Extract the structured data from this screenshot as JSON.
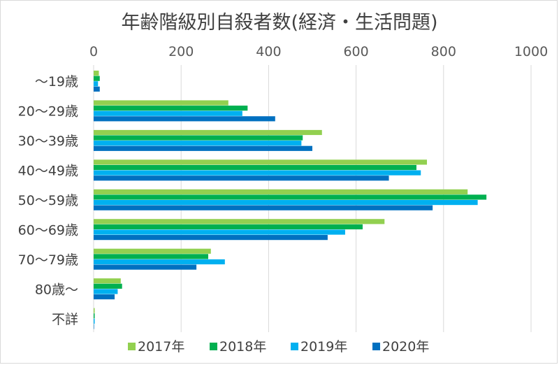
{
  "chart_data": {
    "type": "bar",
    "orientation": "horizontal",
    "title": "年齢階級別自殺者数(経済・生活問題)",
    "xlabel": "",
    "ylabel": "",
    "xlim": [
      0,
      1000
    ],
    "xticks": [
      0,
      200,
      400,
      600,
      800,
      1000
    ],
    "x_axis_position": "top",
    "grid": true,
    "legend_position": "bottom",
    "categories": [
      "～19歳",
      "20～29歳",
      "30～39歳",
      "40～49歳",
      "50～59歳",
      "60～69歳",
      "70～79歳",
      "80歳～",
      "不詳"
    ],
    "series": [
      {
        "name": "2017年",
        "color": "#92d050",
        "values": [
          12,
          308,
          522,
          762,
          855,
          665,
          268,
          62,
          0
        ]
      },
      {
        "name": "2018年",
        "color": "#00b050",
        "values": [
          14,
          352,
          478,
          738,
          898,
          615,
          262,
          65,
          0
        ]
      },
      {
        "name": "2019年",
        "color": "#00b0f0",
        "values": [
          10,
          340,
          475,
          748,
          878,
          575,
          300,
          55,
          0
        ]
      },
      {
        "name": "2020年",
        "color": "#0070c0",
        "values": [
          14,
          415,
          500,
          675,
          775,
          535,
          235,
          48,
          1
        ]
      }
    ]
  }
}
